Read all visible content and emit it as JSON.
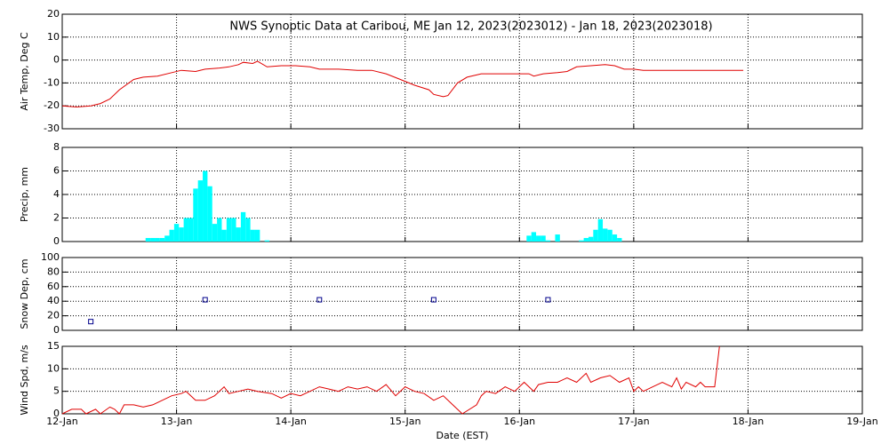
{
  "chart_data": [
    {
      "type": "line",
      "title": "NWS Synoptic Data at Caribou, ME   Jan 12, 2023(2023012) - Jan 18, 2023(2023018)",
      "y_label": "Air Temp, Deg C",
      "color": "#e00000",
      "x": [
        0,
        3,
        6,
        8,
        10,
        12,
        15,
        17,
        20,
        23,
        25,
        28,
        30,
        33,
        35,
        37,
        38,
        40,
        41,
        43,
        46,
        49,
        52,
        54,
        58,
        62,
        65,
        68,
        71,
        74,
        77,
        78,
        80,
        81,
        83,
        85,
        88,
        93,
        98,
        99,
        101,
        104,
        106,
        108,
        111,
        114,
        116,
        118,
        120,
        122,
        130,
        143
      ],
      "values": [
        -20,
        -20.5,
        -20,
        -19,
        -17,
        -13,
        -8.5,
        -7.5,
        -7,
        -5.5,
        -4.5,
        -5,
        -4,
        -3.5,
        -3,
        -2,
        -1,
        -1.5,
        -0.5,
        -3,
        -2.5,
        -2.5,
        -3,
        -4,
        -4,
        -4.5,
        -4.5,
        -6,
        -8.5,
        -11,
        -13,
        -15,
        -16,
        -15.5,
        -10,
        -7.5,
        -6,
        -6,
        -6,
        -7,
        -6,
        -5.5,
        -5,
        -3,
        -2.5,
        -2,
        -2.5,
        -4,
        -4,
        -4.5,
        -4.5,
        -4.5
      ],
      "xlim": [
        0,
        168
      ],
      "xticks": [
        0,
        24,
        48,
        72,
        96,
        120,
        144,
        168
      ],
      "ylim": [
        -30,
        20
      ],
      "yticks": [
        -30,
        -20,
        -10,
        0,
        10,
        20
      ],
      "grid": true
    },
    {
      "type": "bar",
      "y_label": "Precip, mm",
      "color": "#00ffff",
      "x": [
        18,
        19,
        20,
        21,
        22,
        23,
        24,
        25,
        26,
        27,
        28,
        29,
        30,
        31,
        32,
        33,
        34,
        35,
        36,
        37,
        38,
        39,
        40,
        41,
        43,
        98,
        99,
        100,
        101,
        102,
        104,
        109,
        110,
        111,
        112,
        113,
        114,
        115,
        116,
        117
      ],
      "values": [
        0.3,
        0.3,
        0.3,
        0.3,
        0.5,
        1,
        1.5,
        1.2,
        2,
        2,
        4.5,
        5.2,
        6,
        4.7,
        1.5,
        2,
        1,
        2,
        2,
        1.2,
        2.5,
        2,
        1,
        1,
        0.1,
        0.5,
        0.8,
        0.5,
        0.5,
        0.1,
        0.6,
        0.1,
        0.3,
        0.4,
        1,
        1.9,
        1.1,
        1,
        0.6,
        0.3
      ],
      "xlim": [
        0,
        168
      ],
      "xticks": [
        0,
        24,
        48,
        72,
        96,
        120,
        144,
        168
      ],
      "ylim": [
        0,
        8
      ],
      "yticks": [
        0,
        2,
        4,
        6,
        8
      ],
      "grid": true
    },
    {
      "type": "scatter",
      "y_label": "Snow Dep, cm",
      "color": "#00008b",
      "x": [
        6,
        30,
        54,
        78,
        102
      ],
      "values": [
        12,
        42,
        42,
        42,
        42
      ],
      "xlim": [
        0,
        168
      ],
      "xticks": [
        0,
        24,
        48,
        72,
        96,
        120,
        144,
        168
      ],
      "ylim": [
        0,
        100
      ],
      "yticks": [
        0,
        20,
        40,
        60,
        80,
        100
      ],
      "grid": true
    },
    {
      "type": "line",
      "y_label": "Wind Spd, m/s",
      "x_label": "Date (EST)",
      "color": "#e00000",
      "x": [
        0,
        2,
        4,
        5,
        7,
        8,
        10,
        11,
        12,
        13,
        15,
        17,
        19,
        21,
        23,
        25,
        26,
        28,
        30,
        32,
        34,
        35,
        37,
        39,
        41,
        44,
        46,
        48,
        50,
        52,
        54,
        56,
        58,
        60,
        62,
        64,
        66,
        68,
        70,
        72,
        74,
        76,
        78,
        80,
        82,
        84,
        87,
        88,
        89,
        91,
        93,
        95,
        97,
        99,
        100,
        102,
        104,
        106,
        108,
        110,
        111,
        113,
        115,
        117,
        119,
        120,
        121,
        122,
        124,
        126,
        128,
        129,
        130,
        131,
        133,
        134,
        135,
        136,
        137,
        138
      ],
      "values": [
        0,
        1,
        1,
        0,
        1,
        0,
        1.5,
        1,
        0,
        2,
        2,
        1.5,
        2,
        3,
        4,
        4.5,
        5,
        3,
        3,
        4,
        6,
        4.5,
        5,
        5.5,
        5,
        4.5,
        3.5,
        4.5,
        4,
        5,
        6,
        5.5,
        5,
        6,
        5.5,
        6,
        5,
        6.5,
        4,
        6,
        5,
        4.5,
        3,
        4,
        2,
        0,
        2,
        4,
        5,
        4.5,
        6,
        5,
        7,
        5,
        6.5,
        7,
        7,
        8,
        7,
        9,
        7,
        8,
        8.5,
        7,
        8,
        5,
        6,
        5,
        6,
        7,
        6,
        8,
        5.5,
        7,
        6,
        7,
        6,
        6,
        6,
        15
      ],
      "xlim": [
        0,
        168
      ],
      "xticks": [
        {
          "value": 0,
          "label": "12-Jan"
        },
        {
          "value": 24,
          "label": "13-Jan"
        },
        {
          "value": 48,
          "label": "14-Jan"
        },
        {
          "value": 72,
          "label": "15-Jan"
        },
        {
          "value": 96,
          "label": "16-Jan"
        },
        {
          "value": 120,
          "label": "17-Jan"
        },
        {
          "value": 144,
          "label": "18-Jan"
        },
        {
          "value": 168,
          "label": "19-Jan"
        }
      ],
      "ylim": [
        0,
        15
      ],
      "yticks": [
        0,
        5,
        10,
        15
      ],
      "grid": true
    }
  ]
}
